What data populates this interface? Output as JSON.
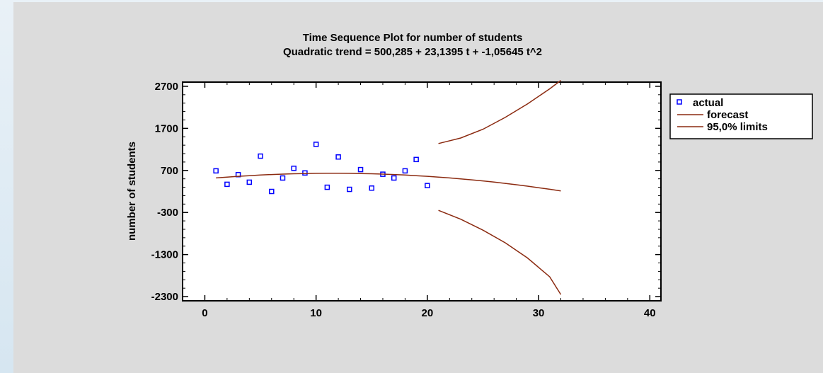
{
  "chart_data": {
    "type": "scatter",
    "title": "Time Sequence Plot for number of students",
    "subtitle": "Quadratic trend = 500,285 + 23,1395 t  + -1,05645 t^2",
    "xlabel": "",
    "ylabel": "number of students",
    "xlim": [
      -2,
      41
    ],
    "ylim": [
      -2400,
      2800
    ],
    "x_ticks": [
      "0",
      "10",
      "20",
      "30",
      "40"
    ],
    "y_ticks": [
      "2700",
      "1700",
      "700",
      "-300",
      "-1300",
      "-2300"
    ],
    "grid": false,
    "legend_position": "right",
    "series": [
      {
        "name": "actual",
        "type": "scatter",
        "color": "#0000ff",
        "x": [
          1,
          2,
          3,
          4,
          5,
          6,
          7,
          8,
          9,
          10,
          11,
          12,
          13,
          14,
          15,
          16,
          17,
          18,
          19,
          20
        ],
        "y": [
          690,
          370,
          600,
          420,
          1040,
          200,
          520,
          750,
          640,
          1320,
          300,
          1020,
          250,
          720,
          280,
          610,
          520,
          690,
          960,
          340
        ]
      },
      {
        "name": "forecast",
        "type": "line",
        "color": "#8b2a10",
        "x": [
          1,
          2,
          3,
          4,
          5,
          6,
          7,
          8,
          9,
          10,
          11,
          12,
          13,
          14,
          15,
          16,
          17,
          18,
          19,
          20,
          21,
          22,
          23,
          24,
          25,
          26,
          27,
          28,
          29,
          30,
          31,
          32
        ],
        "y": [
          522,
          542,
          560,
          576,
          590,
          602,
          612,
          620,
          626,
          630,
          632,
          632,
          630,
          626,
          620,
          612,
          602,
          590,
          576,
          560,
          542,
          522,
          500,
          476,
          450,
          422,
          392,
          360,
          326,
          290,
          252,
          212
        ]
      },
      {
        "name": "95,0% limits",
        "type": "line",
        "color": "#8b2a10",
        "x": [
          21,
          23,
          25,
          27,
          29,
          31,
          32
        ],
        "y": [
          1340,
          1470,
          1680,
          1960,
          2280,
          2640,
          2840
        ]
      },
      {
        "name": "95,0% limits",
        "type": "line",
        "color": "#8b2a10",
        "x": [
          21,
          23,
          25,
          27,
          29,
          31,
          32
        ],
        "y": [
          -250,
          -460,
          -720,
          -1020,
          -1380,
          -1830,
          -2250
        ]
      }
    ]
  }
}
